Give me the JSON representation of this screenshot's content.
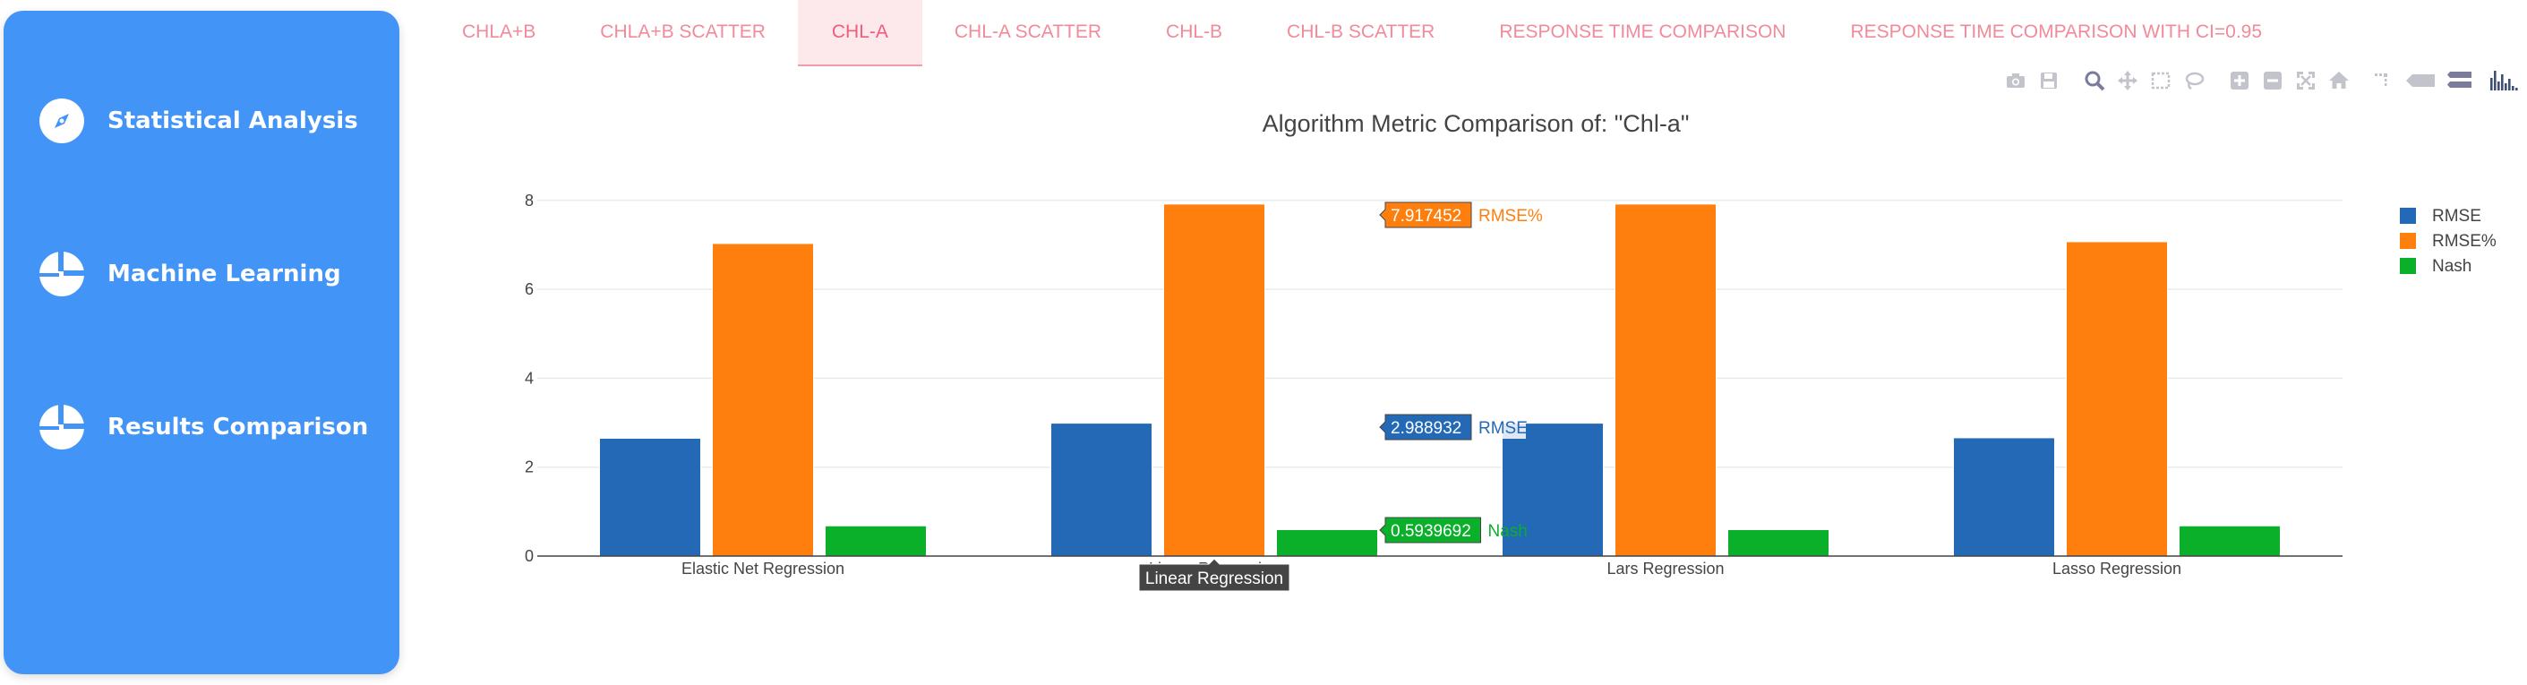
{
  "sidebar": {
    "items": [
      {
        "label": "Statistical Analysis",
        "icon": "compass-icon"
      },
      {
        "label": "Machine Learning",
        "icon": "pie-chart-icon"
      },
      {
        "label": "Results Comparison",
        "icon": "pie-chart-icon"
      }
    ]
  },
  "tabs": [
    {
      "label": "CHLA+B",
      "active": false
    },
    {
      "label": "CHLA+B SCATTER",
      "active": false
    },
    {
      "label": "CHL-A",
      "active": true
    },
    {
      "label": "CHL-A SCATTER",
      "active": false
    },
    {
      "label": "CHL-B",
      "active": false
    },
    {
      "label": "CHL-B SCATTER",
      "active": false
    },
    {
      "label": "RESPONSE TIME COMPARISON",
      "active": false
    },
    {
      "label": "RESPONSE TIME COMPARISON WITH CI=0.95",
      "active": false
    }
  ],
  "toolbar": [
    "camera-icon",
    "save-icon",
    "zoom-icon",
    "pan-icon",
    "box-select-icon",
    "lasso-select-icon",
    "zoom-in-icon",
    "zoom-out-icon",
    "autoscale-icon",
    "reset-axes-icon",
    "spike-lines-icon",
    "hover-closest-icon",
    "hover-compare-icon",
    "plotly-logo-icon"
  ],
  "colors": {
    "sidebar": "#4294f7",
    "tab_text": "#f28a9a",
    "rmse": "#2369b6",
    "rmse_pct": "#ff7f0e",
    "nash": "#0aaf2a"
  },
  "chart_data": {
    "type": "bar",
    "title": "Algorithm Metric Comparison of: \"Chl-a\"",
    "categories": [
      "Elastic Net Regression",
      "Linear Regression",
      "Lars Regression",
      "Lasso Regression"
    ],
    "series": [
      {
        "name": "RMSE",
        "values": [
          2.65,
          2.988932,
          2.988932,
          2.66
        ],
        "color": "#2369b6"
      },
      {
        "name": "RMSE%",
        "values": [
          7.03,
          7.917452,
          7.917452,
          7.07
        ],
        "color": "#ff7f0e"
      },
      {
        "name": "Nash",
        "values": [
          0.68,
          0.5939692,
          0.5939692,
          0.68
        ],
        "color": "#0aaf2a"
      }
    ],
    "ylim": [
      0,
      8.6
    ],
    "yticks": [
      0,
      2,
      4,
      6,
      8
    ],
    "grid": true,
    "legend": "top-right",
    "hover": {
      "category": "Linear Regression",
      "labels": [
        {
          "series": "RMSE%",
          "value": "7.917452"
        },
        {
          "series": "RMSE",
          "value": "2.988932"
        },
        {
          "series": "Nash",
          "value": "0.5939692"
        }
      ]
    }
  }
}
